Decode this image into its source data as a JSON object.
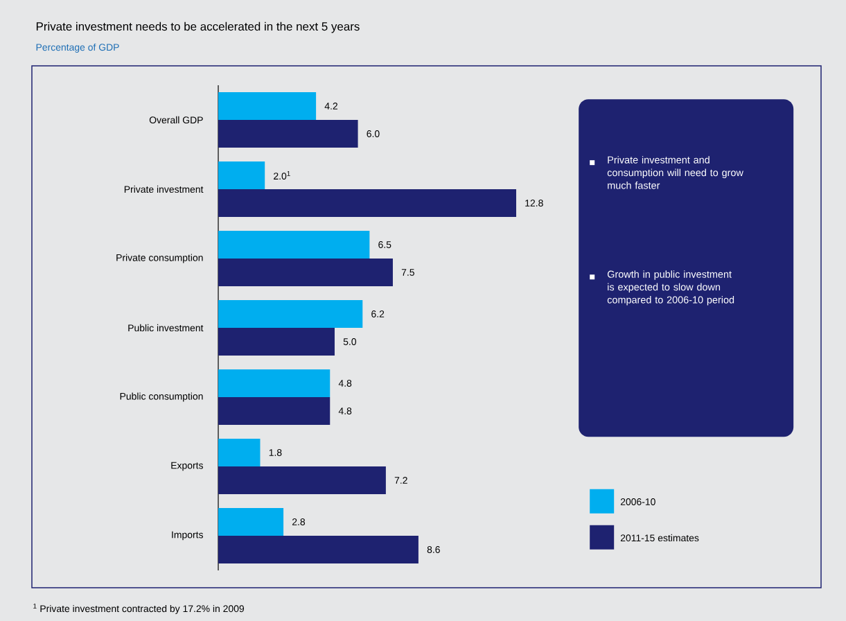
{
  "chart_data": {
    "type": "bar",
    "orientation": "horizontal",
    "title": "Private investment needs to be accelerated in the next 5 years",
    "subtitle": "Percentage of GDP",
    "categories": [
      "Overall GDP",
      "Private investment",
      "Private consumption",
      "Public investment",
      "Public consumption",
      "Exports",
      "Imports"
    ],
    "series": [
      {
        "name": "2006-10",
        "color": "#00aeef",
        "values": [
          4.2,
          2.0,
          6.5,
          6.2,
          4.8,
          1.8,
          2.8
        ],
        "value_labels": [
          "4.2",
          "2.0$^{1}$",
          "6.5",
          "6.2",
          "4.8",
          "1.8",
          "2.8"
        ]
      },
      {
        "name": "2011-15 estimates",
        "color": "#1e2270",
        "values": [
          6.0,
          12.8,
          7.5,
          5.0,
          4.8,
          7.2,
          8.6
        ],
        "value_labels": [
          "6.0",
          "12.8",
          "7.5",
          "5.0",
          "4.8",
          "7.2",
          "8.6"
        ]
      }
    ],
    "annotations": [
      "Private investment and consumption will need to grow much faster",
      "Growth in public investment is expected to slow down compared to 2006-10 period",
      "$^{1}$ Private investment contracted by 17.2% in 2009"
    ],
    "legend": "bottom right",
    "tick_labels": "y"
  }
}
